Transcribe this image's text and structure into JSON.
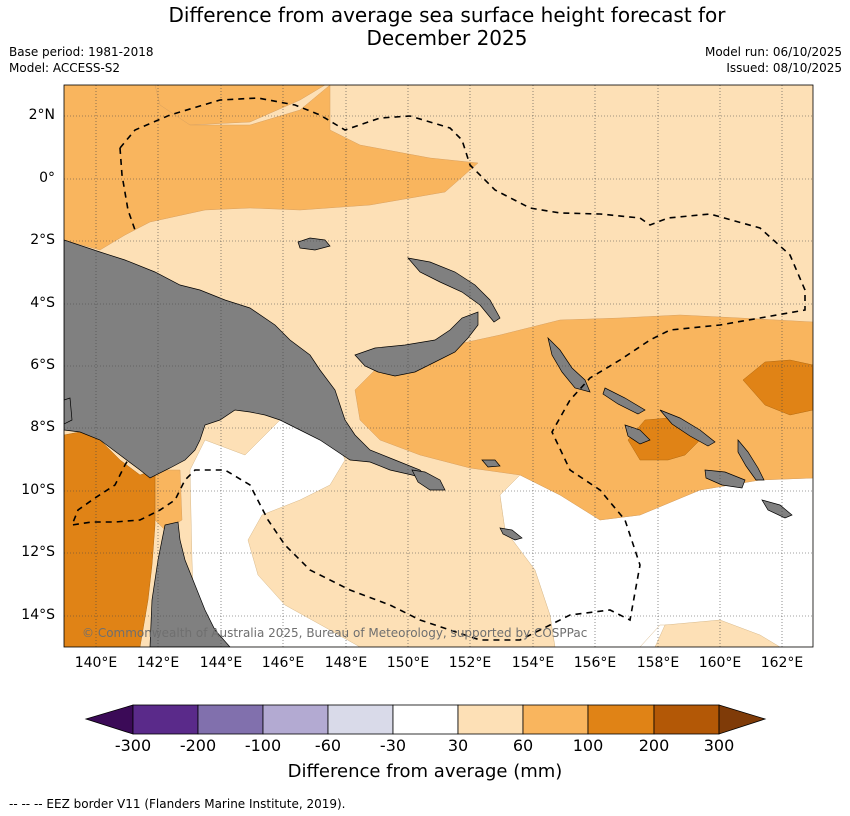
{
  "title_line1": "Difference from average sea surface height forecast for",
  "title_line2": "December 2025",
  "base_period": "Base period: 1981-2018",
  "model": "Model: ACCESS-S2",
  "model_run": "Model run: 06/10/2025",
  "issued": "Issued: 08/10/2025",
  "copyright": "© Commonwealth of Australia 2025, Bureau of Meteorology, supported by COSPPac",
  "footer": "-- -- -- EEZ border V11 (Flanders Marine Institute, 2019).",
  "lat_labels": [
    "2°N",
    "0°",
    "2°S",
    "4°S",
    "6°S",
    "8°S",
    "10°S",
    "12°S",
    "14°S"
  ],
  "lon_labels": [
    "140°E",
    "142°E",
    "144°E",
    "146°E",
    "148°E",
    "150°E",
    "152°E",
    "154°E",
    "156°E",
    "158°E",
    "160°E",
    "162°E"
  ],
  "colorbar": {
    "title": "Difference from average (mm)",
    "ticks": [
      "-300",
      "-200",
      "-100",
      "-60",
      "-30",
      "30",
      "60",
      "100",
      "200",
      "300"
    ],
    "colors": [
      "#3b0a57",
      "#5a2a8a",
      "#8170ad",
      "#b3aad2",
      "#d9dae9",
      "#ffffff",
      "#fde0b6",
      "#f9b55e",
      "#e08316",
      "#b35806",
      "#7f3b08"
    ]
  },
  "colors": {
    "land": "#808080",
    "low": "#fde0b6",
    "mid": "#f9b55e",
    "high": "#e08316"
  }
}
